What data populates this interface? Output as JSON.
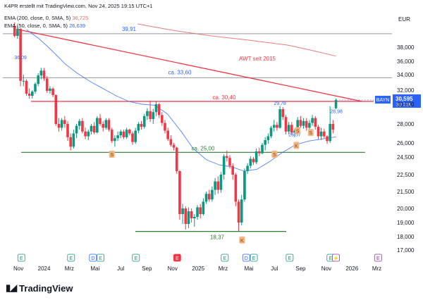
{
  "header": {
    "title": "K4PR erstellt mit TradingView.com, Nov 24, 2025 19:15 UTC+1",
    "ema_label": "EMA (200, close, 0, SMA, 5)",
    "ema_value": "36,725",
    "ema2_label": "EMA (50, close, 0, SMA, 5)",
    "ema2_value": "26,639",
    "ema_color": "#e06666",
    "ema2_color": "#2962ff"
  },
  "branding": {
    "logo": "TradingView"
  },
  "chart_data": {
    "type": "candlestick",
    "currency": "EUR",
    "ylim": [
      16.5,
      41.2
    ],
    "y_ticks": [
      "17,000",
      "18,000",
      "19,000",
      "20,000",
      "21,500",
      "22,500",
      "24,500",
      "26,000",
      "28,000",
      "30,000",
      "32,000",
      "34,000",
      "36,000",
      "38,000"
    ],
    "y_tick_values": [
      17,
      18,
      19,
      20,
      21.5,
      22.5,
      24.5,
      26,
      28,
      30,
      32,
      34,
      36,
      38
    ],
    "x_ticks": [
      "Nov",
      "2024",
      "Mrz",
      "Mai",
      "Jul",
      "Sep",
      "Nov",
      "2025",
      "Mrz",
      "Mai",
      "Jul",
      "Sep",
      "Nov",
      "2026",
      "Mrz"
    ],
    "x_tick_dates": [
      "2023-11-01",
      "2024-01-01",
      "2024-03-01",
      "2024-05-01",
      "2024-07-01",
      "2024-09-01",
      "2024-11-01",
      "2025-01-01",
      "2025-03-01",
      "2025-05-01",
      "2025-07-01",
      "2025-09-01",
      "2025-11-01",
      "2026-01-01",
      "2026-03-01"
    ],
    "last_price": {
      "symbol": "BAYN",
      "value": "30,595",
      "countdown": "3d 23h",
      "y": 30.595,
      "color": "#2962ff"
    },
    "horizontal_levels": [
      {
        "label": "39,91",
        "y": 39.91,
        "color": "#9598a1"
      },
      {
        "label": "ca. 33,60",
        "y": 33.6,
        "color": "#9598a1"
      },
      {
        "label": "ca. 30,40",
        "y": 30.4,
        "color": "#f23645"
      },
      {
        "label": "ca. 25,00",
        "y": 25.0,
        "color": "#2e7d32"
      },
      {
        "label": "18,37",
        "y": 18.37,
        "color": "#2e7d32"
      }
    ],
    "price_labels": [
      {
        "label": "36,09",
        "date": "2023-11-06",
        "y": 36.09,
        "color": "#2962ff"
      },
      {
        "label": "29,78",
        "date": "2025-07-14",
        "y": 29.78,
        "color": "#2962ff"
      },
      {
        "label": "28,98",
        "date": "2025-11-25",
        "y": 28.98,
        "color": "#2962ff"
      },
      {
        "label": "26,57",
        "date": "2025-08-18",
        "y": 26.57,
        "color": "#2962ff"
      }
    ],
    "annotation": {
      "label": "AWT seit 2015",
      "color": "#f23645"
    },
    "trendline": {
      "start": {
        "date": "2023-11-01",
        "y": 40.5
      },
      "end": {
        "date": "2026-01-25",
        "y": 30.4
      },
      "color": "#f23645"
    },
    "markers": [
      {
        "label": "S",
        "type": "split",
        "date": "2024-06-10",
        "y": 24.8
      },
      {
        "label": "S",
        "type": "split",
        "date": "2025-07-01",
        "y": 24.8
      },
      {
        "label": "S",
        "type": "split",
        "date": "2025-08-25",
        "y": 27.3
      },
      {
        "label": "S",
        "type": "split",
        "date": "2025-09-25",
        "y": 27.1
      },
      {
        "label": "K",
        "type": "dividend",
        "date": "2025-04-15",
        "y": 17.75
      },
      {
        "label": "K",
        "type": "dividend",
        "date": "2025-08-22",
        "y": 25.75
      }
    ],
    "events": [
      {
        "label": "E",
        "date": "2023-11-08",
        "style": "earnings"
      },
      {
        "label": "E",
        "date": "2024-03-05",
        "style": "earnings"
      },
      {
        "label": "D",
        "date": "2024-04-26",
        "style": "dividend"
      },
      {
        "label": "E",
        "date": "2024-05-14",
        "style": "earnings"
      },
      {
        "label": "E",
        "date": "2024-08-06",
        "style": "earnings"
      },
      {
        "label": "E",
        "date": "2024-11-12",
        "style": "earnings-red"
      },
      {
        "label": "E",
        "date": "2025-03-05",
        "style": "earnings"
      },
      {
        "label": "D",
        "date": "2025-04-25",
        "style": "dividend"
      },
      {
        "label": "E",
        "date": "2025-05-13",
        "style": "earnings"
      },
      {
        "label": "E",
        "date": "2025-08-06",
        "style": "earnings"
      },
      {
        "label": "E",
        "date": "2025-11-11",
        "style": "earnings"
      },
      {
        "label": "⚡",
        "date": "2025-11-24",
        "style": "flash"
      },
      {
        "label": "E",
        "date": "2026-03-04",
        "style": "earnings-future"
      }
    ],
    "candles": [
      {
        "date": "2023-10-23",
        "o": 41.0,
        "h": 41.5,
        "l": 39.4,
        "c": 39.6
      },
      {
        "date": "2023-10-30",
        "o": 39.6,
        "h": 41.0,
        "l": 39.2,
        "c": 40.6
      },
      {
        "date": "2023-11-06",
        "o": 40.6,
        "h": 40.7,
        "l": 32.5,
        "c": 33.2
      },
      {
        "date": "2023-11-13",
        "o": 33.2,
        "h": 34.0,
        "l": 32.5,
        "c": 33.2
      },
      {
        "date": "2023-11-20",
        "o": 33.2,
        "h": 33.4,
        "l": 31.2,
        "c": 31.5
      },
      {
        "date": "2023-11-27",
        "o": 31.5,
        "h": 32.2,
        "l": 30.8,
        "c": 31.2
      },
      {
        "date": "2023-12-04",
        "o": 31.2,
        "h": 32.0,
        "l": 30.8,
        "c": 31.8
      },
      {
        "date": "2023-12-11",
        "o": 31.8,
        "h": 33.0,
        "l": 31.5,
        "c": 32.8
      },
      {
        "date": "2023-12-18",
        "o": 32.8,
        "h": 34.2,
        "l": 32.5,
        "c": 33.9
      },
      {
        "date": "2023-12-25",
        "o": 33.9,
        "h": 35.0,
        "l": 33.4,
        "c": 34.6
      },
      {
        "date": "2024-01-01",
        "o": 34.6,
        "h": 35.0,
        "l": 33.2,
        "c": 33.5
      },
      {
        "date": "2024-01-08",
        "o": 33.5,
        "h": 33.8,
        "l": 31.6,
        "c": 31.9
      },
      {
        "date": "2024-01-15",
        "o": 31.9,
        "h": 32.5,
        "l": 31.5,
        "c": 32.2
      },
      {
        "date": "2024-01-22",
        "o": 32.2,
        "h": 32.4,
        "l": 31.0,
        "c": 31.3
      },
      {
        "date": "2024-01-29",
        "o": 31.3,
        "h": 31.4,
        "l": 27.8,
        "c": 28.0
      },
      {
        "date": "2024-02-05",
        "o": 28.0,
        "h": 28.6,
        "l": 27.2,
        "c": 27.6
      },
      {
        "date": "2024-02-12",
        "o": 27.6,
        "h": 28.6,
        "l": 27.3,
        "c": 28.4
      },
      {
        "date": "2024-02-19",
        "o": 28.4,
        "h": 28.8,
        "l": 27.6,
        "c": 28.0
      },
      {
        "date": "2024-02-26",
        "o": 28.0,
        "h": 28.3,
        "l": 26.2,
        "c": 26.6
      },
      {
        "date": "2024-03-04",
        "o": 26.6,
        "h": 27.0,
        "l": 25.2,
        "c": 25.6
      },
      {
        "date": "2024-03-11",
        "o": 25.6,
        "h": 27.4,
        "l": 25.4,
        "c": 27.0
      },
      {
        "date": "2024-03-18",
        "o": 27.0,
        "h": 28.0,
        "l": 26.5,
        "c": 27.8
      },
      {
        "date": "2024-03-25",
        "o": 27.8,
        "h": 28.5,
        "l": 27.4,
        "c": 28.3
      },
      {
        "date": "2024-04-01",
        "o": 28.3,
        "h": 28.6,
        "l": 27.0,
        "c": 27.2
      },
      {
        "date": "2024-04-08",
        "o": 27.2,
        "h": 27.6,
        "l": 26.4,
        "c": 26.7
      },
      {
        "date": "2024-04-15",
        "o": 26.7,
        "h": 27.4,
        "l": 26.3,
        "c": 27.2
      },
      {
        "date": "2024-04-22",
        "o": 27.2,
        "h": 28.0,
        "l": 26.9,
        "c": 27.8
      },
      {
        "date": "2024-04-29",
        "o": 27.8,
        "h": 28.2,
        "l": 26.9,
        "c": 27.1
      },
      {
        "date": "2024-05-06",
        "o": 27.1,
        "h": 28.8,
        "l": 27.0,
        "c": 28.6
      },
      {
        "date": "2024-05-13",
        "o": 28.6,
        "h": 29.0,
        "l": 27.8,
        "c": 28.0
      },
      {
        "date": "2024-05-20",
        "o": 28.0,
        "h": 28.3,
        "l": 27.2,
        "c": 27.6
      },
      {
        "date": "2024-05-27",
        "o": 27.6,
        "h": 28.6,
        "l": 27.4,
        "c": 28.4
      },
      {
        "date": "2024-06-03",
        "o": 28.4,
        "h": 28.6,
        "l": 27.2,
        "c": 27.4
      },
      {
        "date": "2024-06-10",
        "o": 27.4,
        "h": 27.6,
        "l": 26.0,
        "c": 26.2
      },
      {
        "date": "2024-06-17",
        "o": 26.2,
        "h": 26.8,
        "l": 25.6,
        "c": 26.5
      },
      {
        "date": "2024-06-24",
        "o": 26.5,
        "h": 27.2,
        "l": 26.2,
        "c": 26.8
      },
      {
        "date": "2024-07-01",
        "o": 26.8,
        "h": 27.4,
        "l": 26.5,
        "c": 27.2
      },
      {
        "date": "2024-07-08",
        "o": 27.2,
        "h": 27.4,
        "l": 26.4,
        "c": 26.6
      },
      {
        "date": "2024-07-15",
        "o": 26.6,
        "h": 27.6,
        "l": 26.4,
        "c": 27.4
      },
      {
        "date": "2024-07-22",
        "o": 27.4,
        "h": 27.5,
        "l": 26.8,
        "c": 27.0
      },
      {
        "date": "2024-07-29",
        "o": 27.0,
        "h": 27.2,
        "l": 25.8,
        "c": 26.1
      },
      {
        "date": "2024-08-05",
        "o": 26.1,
        "h": 27.6,
        "l": 25.9,
        "c": 27.3
      },
      {
        "date": "2024-08-12",
        "o": 27.3,
        "h": 28.2,
        "l": 27.0,
        "c": 28.0
      },
      {
        "date": "2024-08-19",
        "o": 28.0,
        "h": 28.3,
        "l": 27.4,
        "c": 27.7
      },
      {
        "date": "2024-08-26",
        "o": 27.7,
        "h": 29.0,
        "l": 27.5,
        "c": 28.8
      },
      {
        "date": "2024-09-02",
        "o": 28.8,
        "h": 29.6,
        "l": 28.4,
        "c": 29.3
      },
      {
        "date": "2024-09-09",
        "o": 29.3,
        "h": 30.5,
        "l": 28.2,
        "c": 28.5
      },
      {
        "date": "2024-09-16",
        "o": 28.5,
        "h": 29.5,
        "l": 28.0,
        "c": 29.2
      },
      {
        "date": "2024-09-23",
        "o": 29.2,
        "h": 30.4,
        "l": 28.8,
        "c": 30.0
      },
      {
        "date": "2024-09-30",
        "o": 30.0,
        "h": 30.2,
        "l": 28.6,
        "c": 28.9
      },
      {
        "date": "2024-10-07",
        "o": 28.9,
        "h": 29.2,
        "l": 27.8,
        "c": 28.1
      },
      {
        "date": "2024-10-14",
        "o": 28.1,
        "h": 28.4,
        "l": 27.0,
        "c": 27.3
      },
      {
        "date": "2024-10-21",
        "o": 27.3,
        "h": 27.6,
        "l": 26.2,
        "c": 26.4
      },
      {
        "date": "2024-10-28",
        "o": 26.4,
        "h": 26.8,
        "l": 25.6,
        "c": 25.8
      },
      {
        "date": "2024-11-04",
        "o": 25.8,
        "h": 26.0,
        "l": 25.2,
        "c": 25.5
      },
      {
        "date": "2024-11-11",
        "o": 25.5,
        "h": 25.6,
        "l": 22.6,
        "c": 22.9
      },
      {
        "date": "2024-11-18",
        "o": 22.9,
        "h": 23.0,
        "l": 19.2,
        "c": 19.6
      },
      {
        "date": "2024-11-25",
        "o": 19.6,
        "h": 20.4,
        "l": 18.9,
        "c": 20.0
      },
      {
        "date": "2024-12-02",
        "o": 20.0,
        "h": 20.2,
        "l": 18.5,
        "c": 18.9
      },
      {
        "date": "2024-12-09",
        "o": 18.9,
        "h": 20.1,
        "l": 18.6,
        "c": 19.8
      },
      {
        "date": "2024-12-16",
        "o": 19.8,
        "h": 20.0,
        "l": 19.0,
        "c": 19.3
      },
      {
        "date": "2024-12-23",
        "o": 19.3,
        "h": 19.6,
        "l": 18.7,
        "c": 19.4
      },
      {
        "date": "2024-12-30",
        "o": 19.4,
        "h": 20.3,
        "l": 19.2,
        "c": 20.1
      },
      {
        "date": "2025-01-06",
        "o": 20.1,
        "h": 20.4,
        "l": 19.3,
        "c": 19.6
      },
      {
        "date": "2025-01-13",
        "o": 19.6,
        "h": 20.9,
        "l": 19.5,
        "c": 20.6
      },
      {
        "date": "2025-01-20",
        "o": 20.6,
        "h": 21.5,
        "l": 20.4,
        "c": 21.3
      },
      {
        "date": "2025-01-27",
        "o": 21.3,
        "h": 21.6,
        "l": 20.6,
        "c": 20.8
      },
      {
        "date": "2025-02-03",
        "o": 20.8,
        "h": 21.8,
        "l": 20.6,
        "c": 21.6
      },
      {
        "date": "2025-02-10",
        "o": 21.6,
        "h": 22.3,
        "l": 21.2,
        "c": 22.1
      },
      {
        "date": "2025-02-17",
        "o": 22.1,
        "h": 22.4,
        "l": 21.3,
        "c": 21.6
      },
      {
        "date": "2025-02-24",
        "o": 21.6,
        "h": 22.8,
        "l": 21.4,
        "c": 22.5
      },
      {
        "date": "2025-03-03",
        "o": 22.5,
        "h": 24.8,
        "l": 22.2,
        "c": 24.6
      },
      {
        "date": "2025-03-10",
        "o": 24.6,
        "h": 25.2,
        "l": 24.0,
        "c": 24.4
      },
      {
        "date": "2025-03-17",
        "o": 24.4,
        "h": 24.7,
        "l": 23.2,
        "c": 23.5
      },
      {
        "date": "2025-03-24",
        "o": 23.5,
        "h": 23.8,
        "l": 22.2,
        "c": 22.5
      },
      {
        "date": "2025-03-31",
        "o": 22.5,
        "h": 22.7,
        "l": 20.2,
        "c": 20.6
      },
      {
        "date": "2025-04-07",
        "o": 20.6,
        "h": 20.8,
        "l": 18.4,
        "c": 19.0
      },
      {
        "date": "2025-04-14",
        "o": 19.0,
        "h": 21.2,
        "l": 18.8,
        "c": 20.8
      },
      {
        "date": "2025-04-21",
        "o": 20.8,
        "h": 23.2,
        "l": 20.6,
        "c": 22.9
      },
      {
        "date": "2025-04-28",
        "o": 22.9,
        "h": 23.8,
        "l": 22.6,
        "c": 23.5
      },
      {
        "date": "2025-05-05",
        "o": 23.5,
        "h": 24.6,
        "l": 23.2,
        "c": 24.3
      },
      {
        "date": "2025-05-12",
        "o": 24.3,
        "h": 24.5,
        "l": 23.6,
        "c": 23.9
      },
      {
        "date": "2025-05-19",
        "o": 23.9,
        "h": 25.4,
        "l": 23.7,
        "c": 25.1
      },
      {
        "date": "2025-05-26",
        "o": 25.1,
        "h": 25.5,
        "l": 24.6,
        "c": 24.9
      },
      {
        "date": "2025-06-02",
        "o": 24.9,
        "h": 26.0,
        "l": 24.8,
        "c": 25.8
      },
      {
        "date": "2025-06-09",
        "o": 25.8,
        "h": 26.6,
        "l": 25.2,
        "c": 26.3
      },
      {
        "date": "2025-06-16",
        "o": 26.3,
        "h": 27.0,
        "l": 25.9,
        "c": 26.7
      },
      {
        "date": "2025-06-23",
        "o": 26.7,
        "h": 27.8,
        "l": 26.5,
        "c": 27.6
      },
      {
        "date": "2025-06-30",
        "o": 27.6,
        "h": 28.4,
        "l": 27.2,
        "c": 27.9
      },
      {
        "date": "2025-07-07",
        "o": 27.9,
        "h": 28.2,
        "l": 27.3,
        "c": 27.6
      },
      {
        "date": "2025-07-14",
        "o": 27.6,
        "h": 29.8,
        "l": 27.5,
        "c": 29.5
      },
      {
        "date": "2025-07-21",
        "o": 29.5,
        "h": 29.7,
        "l": 28.4,
        "c": 28.7
      },
      {
        "date": "2025-07-28",
        "o": 28.7,
        "h": 28.9,
        "l": 26.9,
        "c": 27.2
      },
      {
        "date": "2025-08-04",
        "o": 27.2,
        "h": 28.2,
        "l": 26.9,
        "c": 27.9
      },
      {
        "date": "2025-08-11",
        "o": 27.9,
        "h": 28.2,
        "l": 26.8,
        "c": 27.1
      },
      {
        "date": "2025-08-18",
        "o": 27.1,
        "h": 27.5,
        "l": 26.6,
        "c": 27.3
      },
      {
        "date": "2025-08-25",
        "o": 27.3,
        "h": 28.7,
        "l": 27.1,
        "c": 28.4
      },
      {
        "date": "2025-09-01",
        "o": 28.4,
        "h": 28.8,
        "l": 27.6,
        "c": 27.8
      },
      {
        "date": "2025-09-08",
        "o": 27.8,
        "h": 28.6,
        "l": 27.5,
        "c": 28.3
      },
      {
        "date": "2025-09-15",
        "o": 28.3,
        "h": 28.6,
        "l": 27.3,
        "c": 27.6
      },
      {
        "date": "2025-09-22",
        "o": 27.6,
        "h": 28.4,
        "l": 27.3,
        "c": 28.1
      },
      {
        "date": "2025-09-29",
        "o": 28.1,
        "h": 28.9,
        "l": 27.8,
        "c": 28.6
      },
      {
        "date": "2025-10-06",
        "o": 28.6,
        "h": 28.8,
        "l": 27.4,
        "c": 27.7
      },
      {
        "date": "2025-10-13",
        "o": 27.7,
        "h": 27.9,
        "l": 26.4,
        "c": 26.7
      },
      {
        "date": "2025-10-20",
        "o": 26.7,
        "h": 27.6,
        "l": 26.3,
        "c": 27.2
      },
      {
        "date": "2025-10-27",
        "o": 27.2,
        "h": 27.5,
        "l": 26.5,
        "c": 26.7
      },
      {
        "date": "2025-11-03",
        "o": 26.7,
        "h": 26.8,
        "l": 25.9,
        "c": 26.2
      },
      {
        "date": "2025-11-10",
        "o": 26.2,
        "h": 29.8,
        "l": 26.0,
        "c": 28.0
      },
      {
        "date": "2025-11-17",
        "o": 28.0,
        "h": 28.4,
        "l": 27.0,
        "c": 27.4
      },
      {
        "date": "2025-11-24",
        "o": 29.6,
        "h": 30.8,
        "l": 29.5,
        "c": 30.595
      }
    ]
  }
}
